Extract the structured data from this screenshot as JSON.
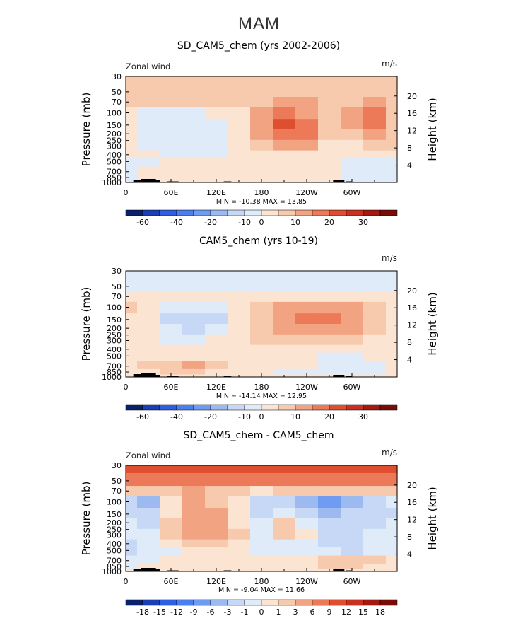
{
  "figure": {
    "title": "MAM"
  },
  "colors": {
    "diverging": [
      "#08216b",
      "#1a3fb5",
      "#2e5fe0",
      "#4a7fef",
      "#6f9bf3",
      "#9cb9f0",
      "#c6d8f5",
      "#e0ebfa",
      "#fce4d2",
      "#f7c9ad",
      "#f2a382",
      "#ec7a58",
      "#e04e30",
      "#c8311f",
      "#a21a10",
      "#7a0c08"
    ],
    "topography": "#000000"
  },
  "chart_data": [
    {
      "type": "heatmap",
      "title": "SD_CAM5_chem (yrs 2002-2006)",
      "left_label": "Zonal wind",
      "units": "m/s",
      "ylabel": "Pressure (mb)",
      "ylabel_right": "Height (km)",
      "pressure_ticks": [
        30,
        50,
        70,
        100,
        150,
        200,
        250,
        300,
        400,
        500,
        700,
        850,
        1000
      ],
      "height_ticks": [
        20,
        16,
        12,
        8,
        4
      ],
      "lon_ticks": [
        "0",
        "60E",
        "120E",
        "180",
        "120W",
        "60W"
      ],
      "min_max_text": "MIN = -10.38   MAX =  13.85",
      "colorbar_labels": [
        "-60",
        "-40",
        "-20",
        "-10",
        "0",
        "10",
        "20",
        "30"
      ],
      "lon": [
        0,
        30,
        60,
        90,
        120,
        150,
        180,
        210,
        240,
        270,
        300,
        330,
        360
      ],
      "pressure": [
        30,
        50,
        70,
        100,
        150,
        200,
        300,
        400,
        500,
        700,
        850,
        1000
      ],
      "color_index": [
        [
          9,
          9,
          9,
          9,
          9,
          9,
          9,
          9,
          9,
          9,
          9,
          9,
          9
        ],
        [
          9,
          9,
          9,
          9,
          9,
          9,
          9,
          9,
          9,
          9,
          9,
          9,
          9
        ],
        [
          9,
          9,
          9,
          9,
          9,
          9,
          9,
          10,
          10,
          9,
          9,
          10,
          9
        ],
        [
          8,
          7,
          7,
          7,
          8,
          8,
          10,
          11,
          10,
          9,
          10,
          11,
          9
        ],
        [
          8,
          7,
          7,
          7,
          7,
          8,
          10,
          12,
          11,
          9,
          10,
          11,
          9
        ],
        [
          8,
          7,
          7,
          7,
          7,
          8,
          10,
          11,
          11,
          9,
          9,
          10,
          9
        ],
        [
          8,
          7,
          7,
          7,
          7,
          8,
          9,
          10,
          10,
          8,
          8,
          9,
          9
        ],
        [
          8,
          8,
          7,
          7,
          7,
          8,
          8,
          8,
          8,
          8,
          8,
          8,
          8
        ],
        [
          7,
          7,
          8,
          8,
          8,
          8,
          8,
          8,
          8,
          8,
          7,
          7,
          7
        ],
        [
          7,
          8,
          8,
          8,
          8,
          8,
          8,
          8,
          8,
          8,
          7,
          7,
          7
        ],
        [
          7,
          8,
          8,
          8,
          8,
          8,
          8,
          8,
          8,
          8,
          7,
          7,
          7
        ],
        [
          7,
          8,
          8,
          8,
          8,
          8,
          8,
          8,
          8,
          8,
          7,
          7,
          7
        ]
      ]
    },
    {
      "type": "heatmap",
      "title": "CAM5_chem (yrs 10-19)",
      "left_label": "",
      "units": "m/s",
      "ylabel": "Pressure (mb)",
      "ylabel_right": "Height (km)",
      "pressure_ticks": [
        30,
        50,
        70,
        100,
        150,
        200,
        250,
        300,
        400,
        500,
        700,
        850,
        1000
      ],
      "height_ticks": [
        20,
        16,
        12,
        8,
        4
      ],
      "lon_ticks": [
        "0",
        "60E",
        "120E",
        "180",
        "120W",
        "60W"
      ],
      "min_max_text": "MIN = -14.14   MAX =  12.95",
      "colorbar_labels": [
        "-60",
        "-40",
        "-20",
        "-10",
        "0",
        "10",
        "20",
        "30"
      ],
      "lon": [
        0,
        30,
        60,
        90,
        120,
        150,
        180,
        210,
        240,
        270,
        300,
        330,
        360
      ],
      "pressure": [
        30,
        50,
        70,
        100,
        150,
        200,
        300,
        400,
        500,
        700,
        850,
        1000
      ],
      "color_index": [
        [
          7,
          7,
          7,
          7,
          7,
          7,
          7,
          7,
          7,
          7,
          7,
          7,
          7
        ],
        [
          7,
          7,
          7,
          7,
          7,
          7,
          7,
          7,
          7,
          7,
          7,
          7,
          7
        ],
        [
          8,
          8,
          8,
          8,
          8,
          8,
          8,
          8,
          8,
          8,
          8,
          8,
          8
        ],
        [
          9,
          8,
          7,
          7,
          7,
          8,
          9,
          10,
          10,
          10,
          10,
          9,
          8
        ],
        [
          8,
          8,
          6,
          6,
          6,
          8,
          9,
          10,
          11,
          11,
          10,
          9,
          8
        ],
        [
          8,
          8,
          7,
          6,
          7,
          8,
          9,
          10,
          10,
          10,
          10,
          9,
          8
        ],
        [
          8,
          8,
          7,
          7,
          8,
          8,
          9,
          9,
          9,
          9,
          9,
          8,
          8
        ],
        [
          8,
          8,
          8,
          8,
          8,
          8,
          8,
          8,
          8,
          8,
          8,
          8,
          8
        ],
        [
          8,
          8,
          8,
          8,
          8,
          8,
          8,
          8,
          8,
          7,
          7,
          8,
          8
        ],
        [
          8,
          9,
          9,
          10,
          9,
          8,
          8,
          8,
          8,
          7,
          7,
          7,
          8
        ],
        [
          8,
          8,
          9,
          9,
          8,
          8,
          8,
          7,
          7,
          7,
          7,
          7,
          8
        ],
        [
          8,
          8,
          8,
          8,
          8,
          8,
          8,
          8,
          8,
          8,
          8,
          8,
          8
        ]
      ]
    },
    {
      "type": "heatmap",
      "title": "SD_CAM5_chem - CAM5_chem",
      "left_label": "Zonal wind",
      "units": "m/s",
      "ylabel": "Pressure (mb)",
      "ylabel_right": "Height (km)",
      "pressure_ticks": [
        30,
        50,
        70,
        100,
        150,
        200,
        250,
        300,
        400,
        500,
        700,
        850,
        1000
      ],
      "height_ticks": [
        20,
        16,
        12,
        8,
        4
      ],
      "lon_ticks": [
        "0",
        "60E",
        "120E",
        "180",
        "120W",
        "60W"
      ],
      "min_max_text": "MIN = -9.04   MAX =  11.66",
      "colorbar_labels": [
        "-18",
        "-15",
        "-12",
        "-9",
        "-6",
        "-3",
        "-1",
        "0",
        "1",
        "3",
        "6",
        "9",
        "12",
        "15",
        "18"
      ],
      "lon": [
        0,
        30,
        60,
        90,
        120,
        150,
        180,
        210,
        240,
        270,
        300,
        330,
        360
      ],
      "pressure": [
        30,
        50,
        70,
        100,
        150,
        200,
        300,
        400,
        500,
        700,
        850,
        1000
      ],
      "color_index": [
        [
          12,
          12,
          12,
          12,
          12,
          12,
          12,
          12,
          12,
          12,
          12,
          12,
          12
        ],
        [
          11,
          11,
          11,
          11,
          11,
          11,
          11,
          11,
          11,
          11,
          11,
          11,
          11
        ],
        [
          9,
          9,
          9,
          10,
          9,
          9,
          8,
          9,
          9,
          9,
          9,
          9,
          9
        ],
        [
          6,
          5,
          8,
          10,
          9,
          8,
          6,
          6,
          5,
          4,
          5,
          6,
          7
        ],
        [
          6,
          6,
          8,
          10,
          10,
          8,
          6,
          7,
          6,
          5,
          6,
          6,
          6
        ],
        [
          7,
          6,
          9,
          10,
          10,
          8,
          7,
          9,
          7,
          6,
          6,
          6,
          7
        ],
        [
          7,
          7,
          9,
          10,
          10,
          9,
          7,
          9,
          8,
          6,
          6,
          7,
          7
        ],
        [
          6,
          7,
          8,
          9,
          9,
          8,
          7,
          7,
          7,
          6,
          6,
          7,
          7
        ],
        [
          6,
          7,
          7,
          8,
          8,
          8,
          7,
          7,
          7,
          7,
          6,
          7,
          7
        ],
        [
          7,
          7,
          8,
          8,
          8,
          8,
          8,
          8,
          8,
          9,
          9,
          9,
          8
        ],
        [
          7,
          8,
          8,
          8,
          8,
          8,
          8,
          8,
          8,
          9,
          9,
          8,
          8
        ],
        [
          8,
          8,
          8,
          8,
          8,
          8,
          8,
          8,
          8,
          8,
          8,
          8,
          8
        ]
      ]
    }
  ]
}
